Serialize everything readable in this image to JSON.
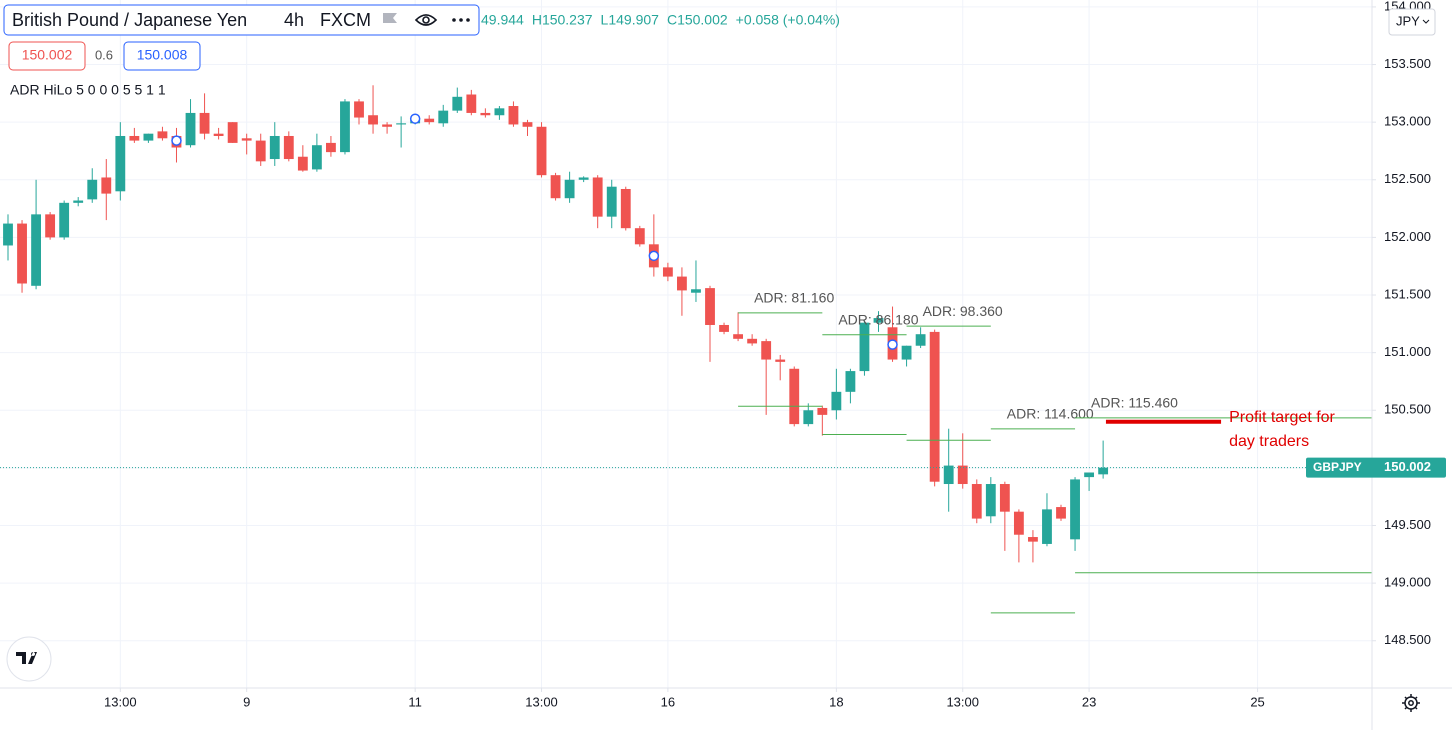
{
  "chart_data": {
    "type": "candlestick",
    "title": "British Pound / Japanese Yen",
    "interval": "4h",
    "exchange": "FXCM",
    "legend_values": [
      "49.944",
      "H150.237",
      "L149.907",
      "C150.002",
      "+0.058 (+0.04%)"
    ],
    "quote": {
      "bid": 150.002,
      "spread": 0.6,
      "ask": 150.008
    },
    "indicator": "ADR HiLo 5 0 0 0 5 5 1 1",
    "currency": "JPY",
    "symbol": "GBPJPY",
    "up_color": "#26a69a",
    "down_color": "#ef5350",
    "grid": true,
    "x": [
      0,
      1,
      2,
      3,
      4,
      5,
      6,
      7,
      8,
      9,
      10,
      11,
      12,
      13,
      14,
      15,
      16,
      17,
      18,
      19,
      20,
      21,
      22,
      23,
      24,
      25,
      26,
      27,
      28,
      29,
      30,
      31,
      32,
      33,
      34,
      35,
      36,
      37,
      38,
      39,
      40,
      41,
      42,
      43,
      44,
      45,
      46,
      47,
      48,
      49,
      50,
      51,
      52,
      53,
      54,
      55,
      56,
      57,
      58,
      59,
      60,
      61,
      62,
      63,
      64,
      65,
      66,
      67,
      68,
      69,
      70,
      71,
      72,
      73,
      74,
      75,
      76,
      77,
      78
    ],
    "open": [
      151.93,
      152.12,
      151.58,
      152.2,
      152.0,
      152.3,
      152.33,
      152.52,
      152.4,
      152.88,
      152.84,
      152.92,
      152.88,
      152.8,
      153.08,
      152.9,
      153.0,
      152.86,
      152.84,
      152.68,
      152.88,
      152.7,
      152.59,
      152.82,
      152.74,
      153.18,
      153.06,
      152.98,
      152.98,
      152.99,
      153.03,
      152.99,
      153.1,
      153.24,
      153.08,
      153.06,
      153.14,
      153.0,
      152.96,
      152.54,
      152.34,
      152.5,
      152.52,
      152.18,
      152.42,
      152.08,
      151.94,
      151.74,
      151.66,
      151.52,
      151.56,
      151.24,
      151.16,
      151.12,
      151.1,
      150.94,
      150.86,
      150.38,
      150.52,
      150.5,
      150.66,
      150.84,
      151.26,
      151.22,
      150.94,
      151.06,
      151.18,
      149.86,
      150.02,
      149.86,
      149.58,
      149.86,
      149.62,
      149.4,
      149.34,
      149.66,
      149.38,
      149.92,
      149.944
    ],
    "high": [
      152.2,
      152.15,
      152.5,
      152.22,
      152.32,
      152.35,
      152.6,
      152.68,
      153.0,
      152.95,
      152.9,
      152.96,
      152.95,
      153.2,
      153.25,
      152.95,
      153.0,
      152.9,
      152.9,
      153.0,
      152.92,
      152.8,
      152.9,
      152.88,
      153.2,
      153.2,
      153.32,
      153.0,
      153.05,
      153.05,
      153.06,
      153.15,
      153.3,
      153.28,
      153.12,
      153.14,
      153.18,
      153.02,
      153.0,
      152.56,
      152.57,
      152.53,
      152.54,
      152.5,
      152.44,
      152.1,
      152.2,
      151.78,
      151.74,
      151.8,
      151.58,
      151.26,
      151.35,
      151.16,
      151.12,
      150.98,
      150.88,
      150.56,
      150.54,
      150.86,
      150.86,
      151.28,
      151.36,
      151.4,
      151.06,
      151.22,
      151.2,
      150.34,
      150.3,
      149.9,
      149.92,
      149.88,
      149.64,
      149.46,
      149.78,
      149.68,
      149.92,
      149.96,
      150.237
    ],
    "low": [
      151.8,
      151.52,
      151.55,
      151.98,
      151.98,
      152.27,
      152.3,
      152.15,
      152.32,
      152.82,
      152.82,
      152.84,
      152.65,
      152.78,
      152.85,
      152.85,
      152.82,
      152.72,
      152.62,
      152.62,
      152.66,
      152.57,
      152.57,
      152.7,
      152.72,
      152.98,
      152.9,
      152.9,
      152.78,
      152.98,
      152.98,
      152.96,
      153.08,
      153.06,
      153.04,
      153.02,
      152.96,
      152.88,
      152.52,
      152.32,
      152.3,
      152.48,
      152.08,
      152.08,
      152.06,
      151.92,
      151.66,
      151.62,
      151.32,
      151.44,
      150.92,
      151.16,
      151.1,
      151.06,
      150.46,
      150.76,
      150.36,
      150.36,
      150.28,
      150.42,
      150.56,
      150.8,
      151.18,
      150.92,
      150.88,
      151.04,
      149.84,
      149.62,
      149.82,
      149.52,
      149.52,
      149.28,
      149.18,
      149.18,
      149.32,
      149.54,
      149.28,
      149.8,
      149.907
    ],
    "close": [
      152.12,
      151.6,
      152.2,
      152.0,
      152.3,
      152.32,
      152.5,
      152.38,
      152.88,
      152.84,
      152.9,
      152.86,
      152.78,
      153.08,
      152.9,
      152.88,
      152.82,
      152.84,
      152.66,
      152.88,
      152.68,
      152.58,
      152.8,
      152.74,
      153.18,
      153.04,
      152.98,
      152.96,
      152.99,
      153.02,
      153.0,
      153.1,
      153.22,
      153.08,
      153.06,
      153.12,
      152.98,
      152.96,
      152.54,
      152.34,
      152.5,
      152.52,
      152.18,
      152.44,
      152.08,
      151.94,
      151.74,
      151.66,
      151.54,
      151.55,
      151.24,
      151.18,
      151.12,
      151.08,
      150.94,
      150.92,
      150.38,
      150.5,
      150.46,
      150.66,
      150.84,
      151.26,
      151.3,
      150.94,
      151.06,
      151.16,
      149.88,
      150.02,
      149.86,
      149.56,
      149.86,
      149.62,
      149.42,
      149.36,
      149.64,
      149.56,
      149.9,
      149.96,
      150.002
    ],
    "markers": [
      {
        "x": 12,
        "value": 152.84
      },
      {
        "x": 29,
        "value": 153.03
      },
      {
        "x": 46,
        "value": 151.84
      },
      {
        "x": 63,
        "value": 151.07
      }
    ],
    "adr_levels": [
      {
        "label": "ADR: 81.160",
        "high": 151.345,
        "low": 150.535,
        "x_start": 52,
        "x_end": 58
      },
      {
        "label": "ADR: 86.180",
        "high": 151.155,
        "low": 150.29,
        "x_start": 58,
        "x_end": 64
      },
      {
        "label": "ADR: 98.360",
        "high": 151.23,
        "low": 150.24,
        "x_start": 64,
        "x_end": 70
      },
      {
        "label": "ADR: 114.600",
        "high": 150.338,
        "low": 148.742,
        "x_start": 70,
        "x_end": 76
      },
      {
        "label": "ADR: 115.460",
        "high": 150.434,
        "low": 149.09,
        "x_start": 76,
        "x_end": 97.15
      }
    ],
    "profit_target": {
      "text": [
        "Profit target for",
        "day traders"
      ],
      "value": 150.4,
      "x_start": 78.2,
      "x_end": 86.4,
      "color": "#e00000"
    },
    "xlim": [
      -0.57,
      97.15
    ],
    "xticks": [
      {
        "value": 8,
        "label": "13:00"
      },
      {
        "value": 17,
        "label": "9"
      },
      {
        "value": 29,
        "label": "11"
      },
      {
        "value": 38,
        "label": "13:00"
      },
      {
        "value": 47,
        "label": "16"
      },
      {
        "value": 59,
        "label": "18"
      },
      {
        "value": 68,
        "label": "13:00"
      },
      {
        "value": 77,
        "label": "23"
      },
      {
        "value": 89,
        "label": "25"
      }
    ],
    "ylim": [
      148.09,
      154.06
    ],
    "yticks": [
      {
        "value": 148.5,
        "label": "148.500"
      },
      {
        "value": 149,
        "label": "149.000"
      },
      {
        "value": 149.5,
        "label": "149.500"
      },
      {
        "value": 150,
        "label": "150.000"
      },
      {
        "value": 150.5,
        "label": "150.500"
      },
      {
        "value": 151,
        "label": "151.000"
      },
      {
        "value": 151.5,
        "label": "151.500"
      },
      {
        "value": 152,
        "label": "152.000"
      },
      {
        "value": 152.5,
        "label": "152.500"
      },
      {
        "value": 153,
        "label": "153.000"
      },
      {
        "value": 153.5,
        "label": "153.500"
      },
      {
        "value": 154,
        "label": "154.000"
      }
    ]
  }
}
